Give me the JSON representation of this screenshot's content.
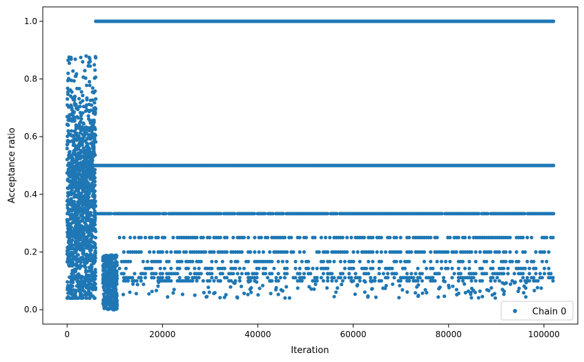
{
  "chart_data": {
    "type": "scatter",
    "title": "",
    "xlabel": "Iteration",
    "ylabel": "Acceptance ratio",
    "xlim": [
      -5100,
      107100
    ],
    "ylim": [
      -0.05,
      1.05
    ],
    "x_ticks": [
      0,
      20000,
      40000,
      60000,
      80000,
      100000
    ],
    "y_ticks": [
      0.0,
      0.2,
      0.4,
      0.6,
      0.8,
      1.0
    ],
    "legend_position": "lower-right",
    "grid": false,
    "series": [
      {
        "name": "Chain 0",
        "color": "#1f77b4",
        "marker": "circle",
        "segments": [
          {
            "phase": "burn-in",
            "x_range": [
              0,
              6000
            ],
            "y_range": [
              0.04,
              0.88
            ],
            "description_values": [
              0.05,
              0.1,
              0.15,
              0.2,
              0.25,
              0.3,
              0.35,
              0.4,
              0.45,
              0.5,
              0.55,
              0.6,
              0.65,
              0.7,
              0.75,
              0.8,
              0.85,
              0.88
            ]
          },
          {
            "phase": "transition",
            "x_range": [
              6000,
              10500
            ],
            "y_range": [
              0.0,
              0.2
            ]
          },
          {
            "phase": "plateau",
            "x_range": [
              6000,
              102000
            ],
            "y": 1.0
          },
          {
            "phase": "plateau",
            "x_range": [
              6000,
              102000
            ],
            "y": 0.5
          },
          {
            "phase": "plateau",
            "x_range": [
              6000,
              102000
            ],
            "y": 0.333
          },
          {
            "phase": "plateau",
            "x_range": [
              11000,
              102000
            ],
            "y": 0.25
          },
          {
            "phase": "plateau",
            "x_range": [
              11000,
              102000
            ],
            "y": 0.2
          },
          {
            "phase": "plateau",
            "x_range": [
              11000,
              102000
            ],
            "y": 0.167
          },
          {
            "phase": "plateau",
            "x_range": [
              11000,
              102000
            ],
            "y": 0.143
          },
          {
            "phase": "plateau",
            "x_range": [
              11000,
              102000
            ],
            "y": 0.125
          },
          {
            "phase": "plateau",
            "x_range": [
              11000,
              102000
            ],
            "y": 0.111
          },
          {
            "phase": "plateau",
            "x_range": [
              11000,
              102000
            ],
            "y": 0.1
          }
        ]
      }
    ]
  }
}
